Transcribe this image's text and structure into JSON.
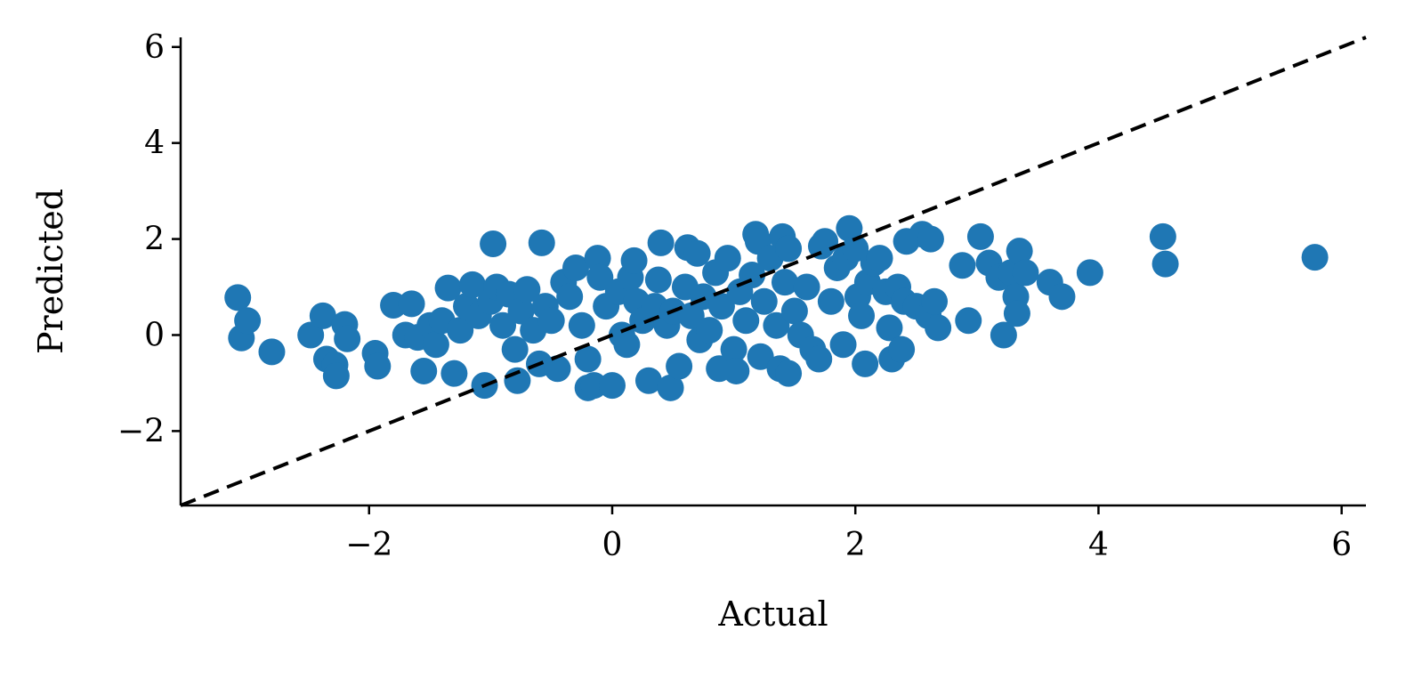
{
  "chart_data": {
    "type": "scatter",
    "xlabel": "Actual",
    "ylabel": "Predicted",
    "xlim": [
      -3.55,
      6.2
    ],
    "ylim": [
      -3.55,
      6.2
    ],
    "xticks": [
      {
        "value": -2,
        "label": "−2"
      },
      {
        "value": 0,
        "label": "0"
      },
      {
        "value": 2,
        "label": "2"
      },
      {
        "value": 4,
        "label": "4"
      },
      {
        "value": 6,
        "label": "6"
      }
    ],
    "yticks": [
      {
        "value": -2,
        "label": "−2"
      },
      {
        "value": 0,
        "label": "0"
      },
      {
        "value": 2,
        "label": "2"
      },
      {
        "value": 4,
        "label": "4"
      },
      {
        "value": 6,
        "label": "6"
      }
    ],
    "grid": false,
    "point_color": "#1f77b4",
    "reference_line": {
      "style": "dashed",
      "color": "#000000",
      "from": [
        -3.55,
        -3.55
      ],
      "to": [
        6.2,
        6.2
      ]
    },
    "points": [
      [
        -3.08,
        0.78
      ],
      [
        -3.05,
        -0.06
      ],
      [
        -3.0,
        0.3
      ],
      [
        -2.8,
        -0.35
      ],
      [
        -2.48,
        0.0
      ],
      [
        -2.38,
        0.4
      ],
      [
        -2.35,
        -0.5
      ],
      [
        -2.28,
        -0.62
      ],
      [
        -2.27,
        -0.85
      ],
      [
        -2.2,
        0.22
      ],
      [
        -2.18,
        -0.08
      ],
      [
        -1.95,
        -0.38
      ],
      [
        -1.93,
        -0.65
      ],
      [
        -1.8,
        0.62
      ],
      [
        -1.65,
        0.65
      ],
      [
        -1.7,
        0.0
      ],
      [
        -1.6,
        -0.05
      ],
      [
        -1.55,
        -0.75
      ],
      [
        -1.5,
        0.2
      ],
      [
        -1.45,
        -0.2
      ],
      [
        -1.4,
        0.3
      ],
      [
        -1.35,
        0.98
      ],
      [
        -1.3,
        -0.8
      ],
      [
        -1.25,
        0.1
      ],
      [
        -1.2,
        0.6
      ],
      [
        -1.15,
        1.05
      ],
      [
        -1.1,
        0.4
      ],
      [
        -1.05,
        -1.05
      ],
      [
        -1.0,
        0.7
      ],
      [
        -0.98,
        1.9
      ],
      [
        -0.95,
        1.0
      ],
      [
        -0.9,
        0.2
      ],
      [
        -0.85,
        0.85
      ],
      [
        -0.8,
        -0.3
      ],
      [
        -0.78,
        -0.95
      ],
      [
        -0.75,
        0.5
      ],
      [
        -0.7,
        0.95
      ],
      [
        -0.65,
        0.1
      ],
      [
        -0.6,
        -0.6
      ],
      [
        -0.58,
        1.92
      ],
      [
        -0.55,
        0.6
      ],
      [
        -0.5,
        0.3
      ],
      [
        -0.45,
        -0.7
      ],
      [
        -0.4,
        1.1
      ],
      [
        -0.35,
        0.8
      ],
      [
        -0.3,
        1.4
      ],
      [
        -0.25,
        0.2
      ],
      [
        -0.2,
        -0.5
      ],
      [
        -0.2,
        -1.1
      ],
      [
        -0.15,
        -1.05
      ],
      [
        -0.12,
        1.6
      ],
      [
        -0.1,
        1.2
      ],
      [
        -0.05,
        0.6
      ],
      [
        0.0,
        -1.05
      ],
      [
        0.05,
        0.9
      ],
      [
        0.08,
        0.0
      ],
      [
        0.12,
        -0.2
      ],
      [
        0.15,
        1.2
      ],
      [
        0.18,
        1.55
      ],
      [
        0.2,
        0.7
      ],
      [
        0.25,
        0.3
      ],
      [
        0.3,
        -0.95
      ],
      [
        0.35,
        0.6
      ],
      [
        0.38,
        1.15
      ],
      [
        0.4,
        1.92
      ],
      [
        0.45,
        0.2
      ],
      [
        0.48,
        -1.1
      ],
      [
        0.5,
        0.5
      ],
      [
        0.55,
        -0.65
      ],
      [
        0.6,
        1.0
      ],
      [
        0.62,
        1.82
      ],
      [
        0.65,
        0.4
      ],
      [
        0.7,
        1.7
      ],
      [
        0.72,
        -0.1
      ],
      [
        0.75,
        0.8
      ],
      [
        0.8,
        0.1
      ],
      [
        0.85,
        1.3
      ],
      [
        0.88,
        -0.7
      ],
      [
        0.9,
        0.6
      ],
      [
        0.95,
        1.6
      ],
      [
        1.0,
        -0.3
      ],
      [
        1.02,
        -0.75
      ],
      [
        1.05,
        0.9
      ],
      [
        1.1,
        0.3
      ],
      [
        1.15,
        1.25
      ],
      [
        1.18,
        2.1
      ],
      [
        1.2,
        1.95
      ],
      [
        1.22,
        -0.45
      ],
      [
        1.25,
        0.7
      ],
      [
        1.3,
        1.6
      ],
      [
        1.35,
        0.2
      ],
      [
        1.38,
        -0.7
      ],
      [
        1.4,
        2.05
      ],
      [
        1.42,
        1.1
      ],
      [
        1.45,
        1.8
      ],
      [
        1.45,
        -0.8
      ],
      [
        1.5,
        0.5
      ],
      [
        1.55,
        0.0
      ],
      [
        1.6,
        1.0
      ],
      [
        1.65,
        -0.3
      ],
      [
        1.7,
        -0.5
      ],
      [
        1.72,
        1.85
      ],
      [
        1.75,
        1.95
      ],
      [
        1.8,
        0.7
      ],
      [
        1.85,
        1.4
      ],
      [
        1.9,
        -0.2
      ],
      [
        1.92,
        1.6
      ],
      [
        1.95,
        2.22
      ],
      [
        2.0,
        1.8
      ],
      [
        2.02,
        0.8
      ],
      [
        2.05,
        0.4
      ],
      [
        2.08,
        -0.6
      ],
      [
        2.1,
        1.1
      ],
      [
        2.15,
        1.5
      ],
      [
        2.2,
        1.6
      ],
      [
        2.25,
        0.9
      ],
      [
        2.28,
        0.15
      ],
      [
        2.3,
        -0.5
      ],
      [
        2.35,
        1.0
      ],
      [
        2.38,
        -0.3
      ],
      [
        2.4,
        0.7
      ],
      [
        2.42,
        1.95
      ],
      [
        2.5,
        0.6
      ],
      [
        2.55,
        2.1
      ],
      [
        2.6,
        0.4
      ],
      [
        2.62,
        2.0
      ],
      [
        2.65,
        0.7
      ],
      [
        2.68,
        0.15
      ],
      [
        2.88,
        1.45
      ],
      [
        2.93,
        0.3
      ],
      [
        3.03,
        2.05
      ],
      [
        3.1,
        1.5
      ],
      [
        3.18,
        1.2
      ],
      [
        3.22,
        0.0
      ],
      [
        3.28,
        1.3
      ],
      [
        3.32,
        0.8
      ],
      [
        3.33,
        0.45
      ],
      [
        3.35,
        1.75
      ],
      [
        3.4,
        1.3
      ],
      [
        3.6,
        1.1
      ],
      [
        3.7,
        0.8
      ],
      [
        3.93,
        1.3
      ],
      [
        4.53,
        2.05
      ],
      [
        4.55,
        1.48
      ],
      [
        5.78,
        1.62
      ]
    ]
  }
}
